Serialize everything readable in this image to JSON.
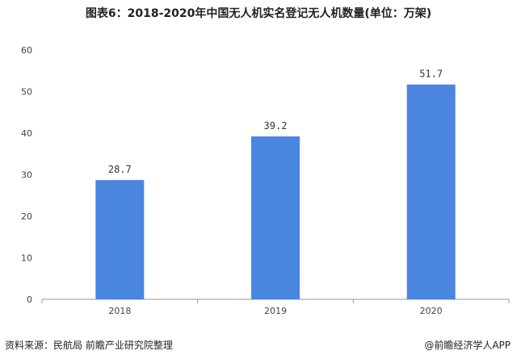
{
  "title": "图表6：2018-2020年中国无人机实名登记无人机数量(单位：万架)",
  "footer": {
    "source": "资料来源：民航局 前瞻产业研究院整理",
    "brand": "@前瞻经济学人APP"
  },
  "colors": {
    "bar": "#4a86e0",
    "axis": "#999999",
    "text": "#444444"
  },
  "chart_data": {
    "type": "bar",
    "title": "图表6：2018-2020年中国无人机实名登记无人机数量(单位：万架)",
    "xlabel": "",
    "ylabel": "",
    "categories": [
      "2018",
      "2019",
      "2020"
    ],
    "values": [
      28.7,
      39.2,
      51.7
    ],
    "value_labels": [
      "28.7",
      "39.2",
      "51.7"
    ],
    "ylim": [
      0,
      60
    ],
    "yticks": [
      0,
      10,
      20,
      30,
      40,
      50,
      60
    ],
    "grid": false,
    "legend": "none"
  }
}
